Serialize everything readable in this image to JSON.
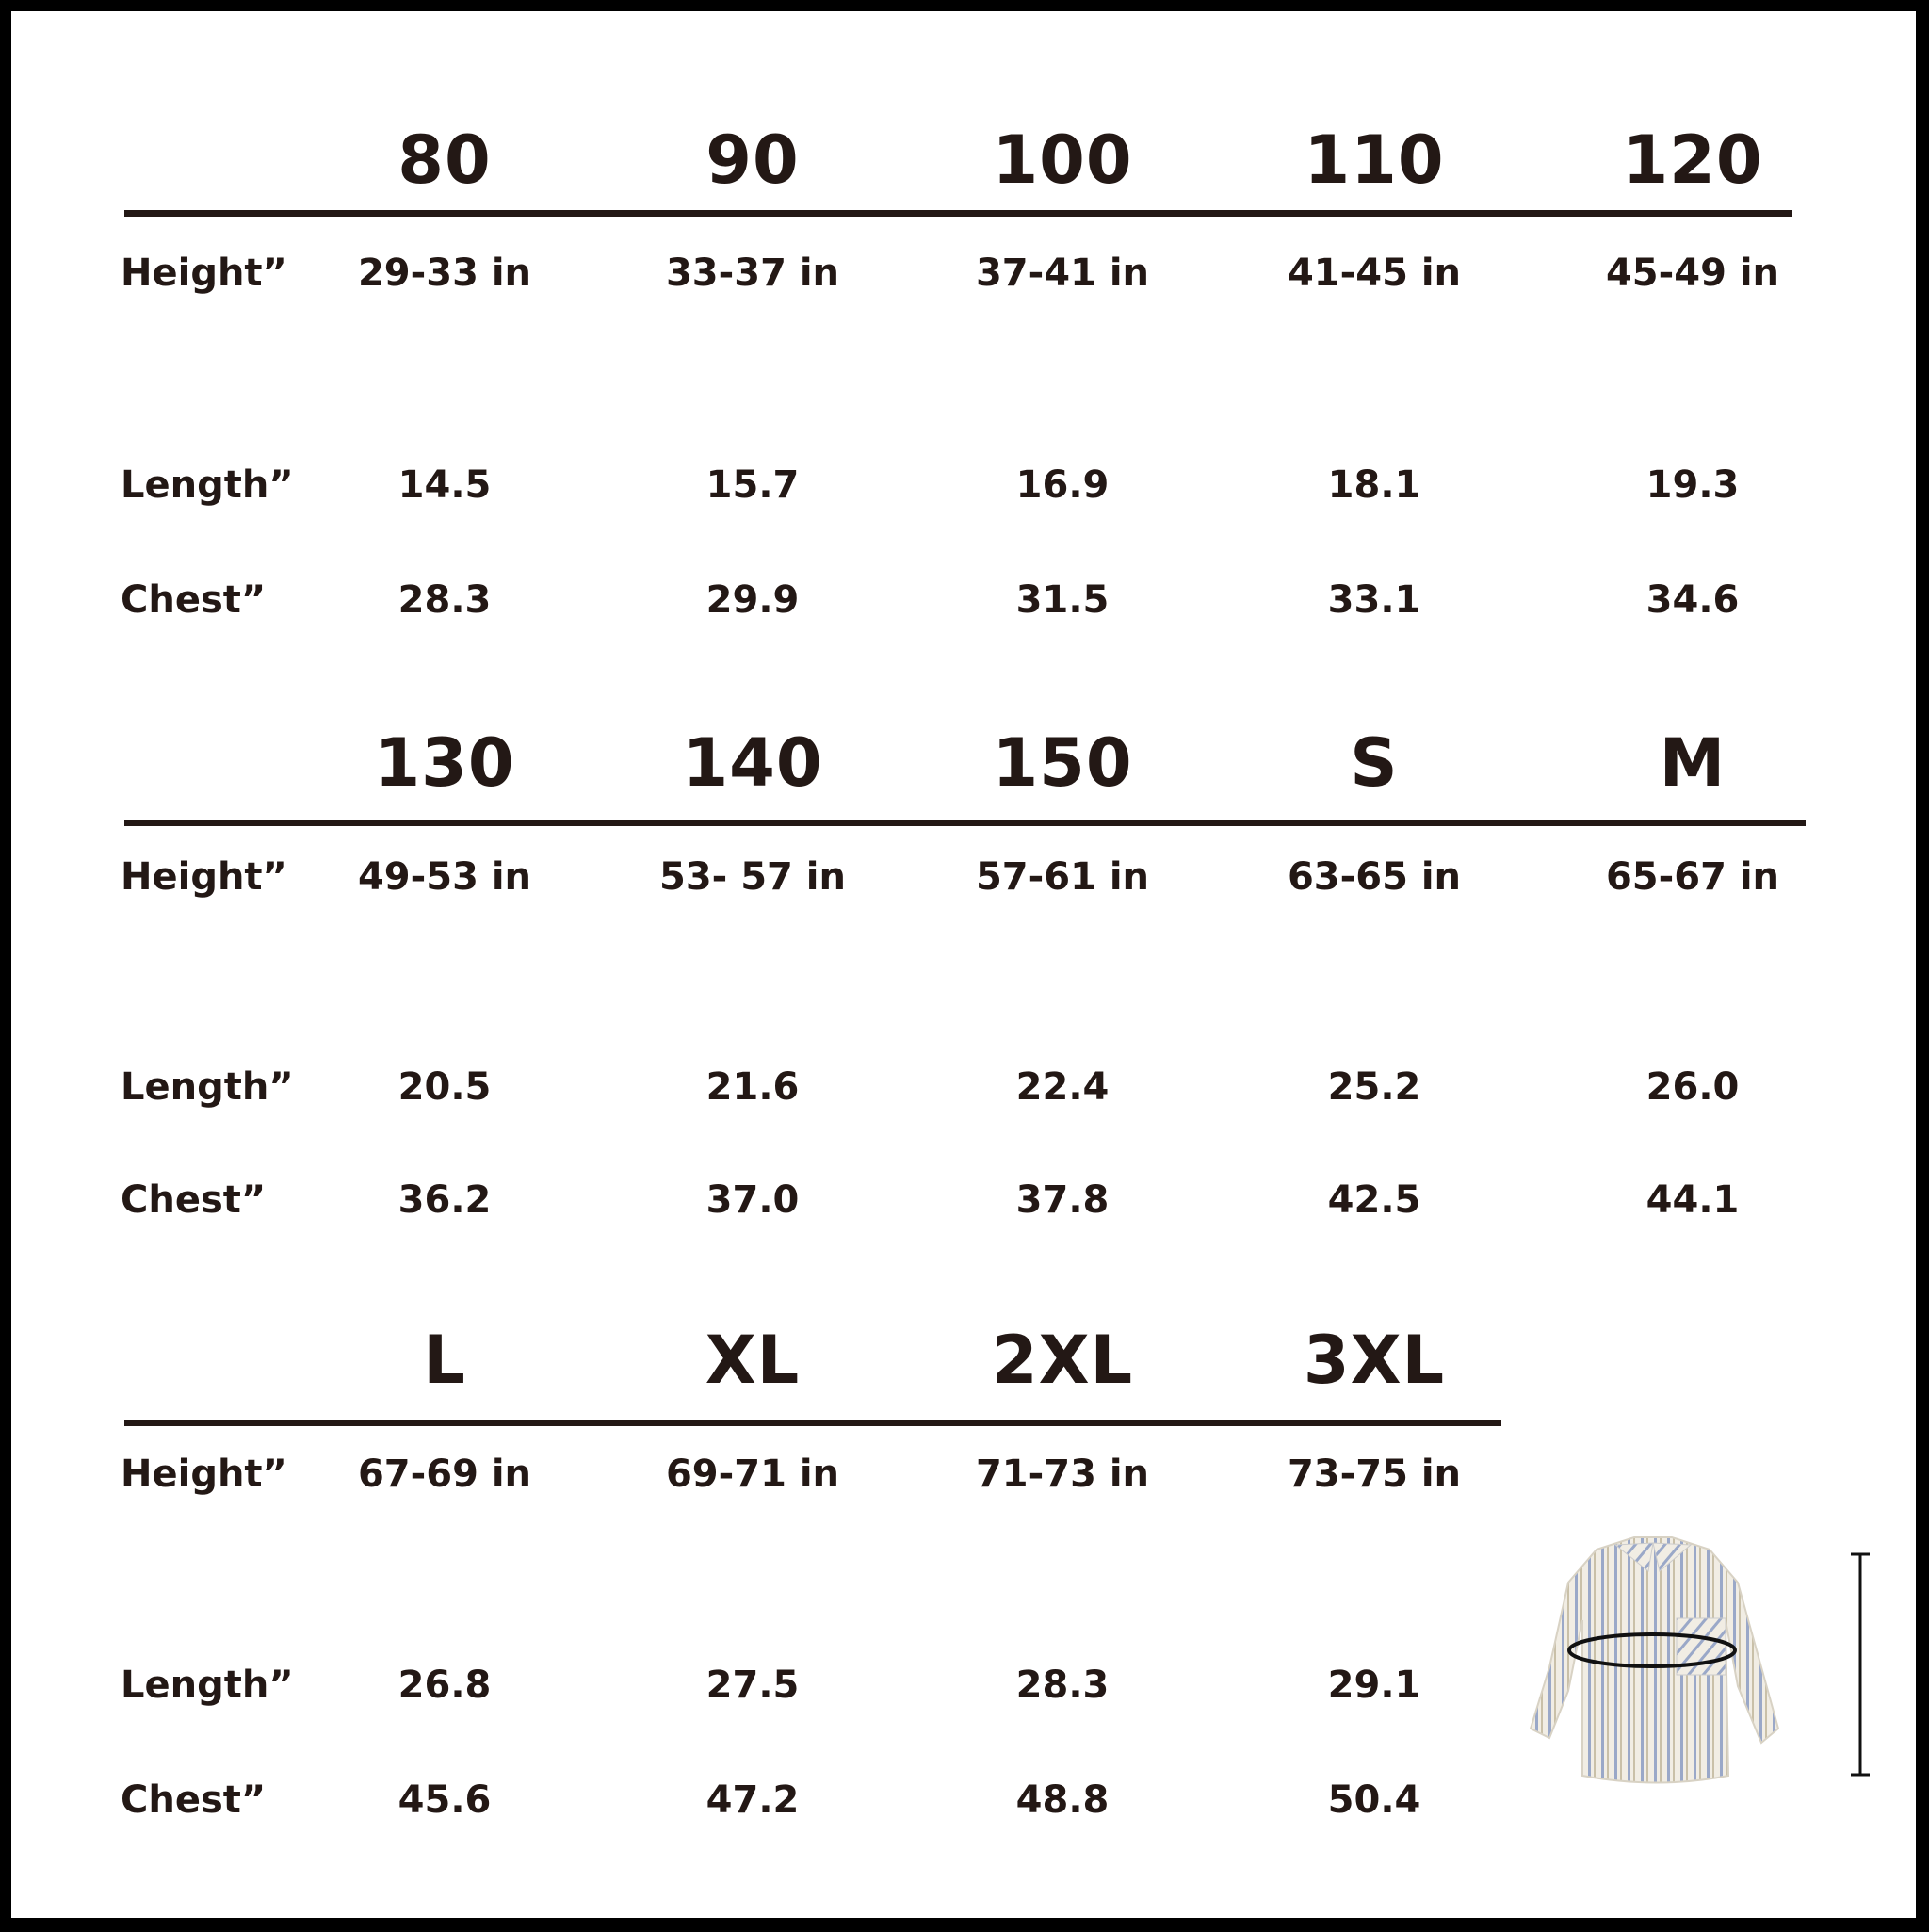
{
  "row_labels": {
    "height": "Height”",
    "length": "Length”",
    "chest": "Chest”"
  },
  "sections": [
    {
      "sizes": [
        "80",
        "90",
        "100",
        "110",
        "120"
      ],
      "height": [
        "29-33 in",
        "33-37 in",
        "37-41 in",
        "41-45 in",
        "45-49 in"
      ],
      "length": [
        "14.5",
        "15.7",
        "16.9",
        "18.1",
        "19.3"
      ],
      "chest": [
        "28.3",
        "29.9",
        "31.5",
        "33.1",
        "34.6"
      ]
    },
    {
      "sizes": [
        "130",
        "140",
        "150",
        "S",
        "M"
      ],
      "height": [
        "49-53 in",
        "53- 57 in",
        "57-61 in",
        "63-65 in",
        "65-67 in"
      ],
      "length": [
        "20.5",
        "21.6",
        "22.4",
        "25.2",
        "26.0"
      ],
      "chest": [
        "36.2",
        "37.0",
        "37.8",
        "42.5",
        "44.1"
      ]
    },
    {
      "sizes": [
        "L",
        "XL",
        "2XL",
        "3XL"
      ],
      "height": [
        "67-69 in",
        "69-71 in",
        "71-73 in",
        "73-75 in"
      ],
      "length": [
        "26.8",
        "27.5",
        "28.3",
        "29.1"
      ],
      "chest": [
        "45.6",
        "47.2",
        "48.8",
        "50.4"
      ]
    }
  ],
  "colors": {
    "text": "#231815",
    "frame": "#000000",
    "shirt_stripe": "#9aa8c8",
    "shirt_base": "#f1ede4"
  },
  "illustration": {
    "icon": "striped-shirt-measurement-icon"
  }
}
